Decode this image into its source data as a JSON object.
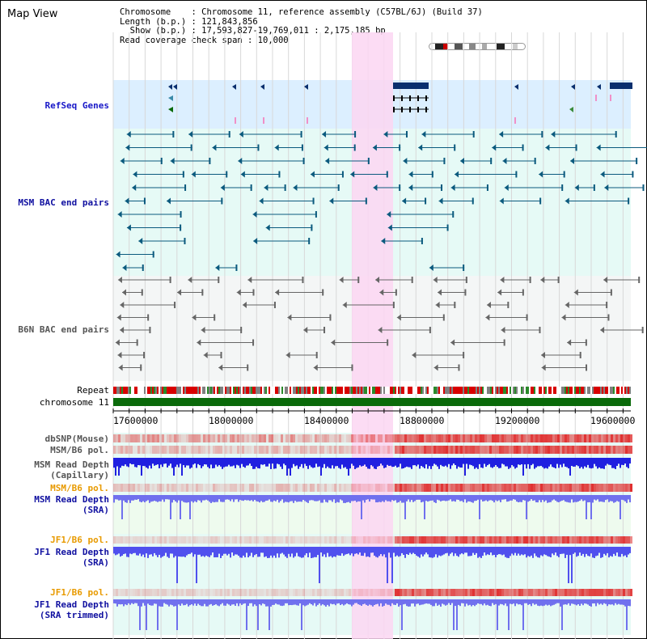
{
  "title": "Map View",
  "info": {
    "chromosome": "Chromosome    : Chromosome 11, reference assembly (C57BL/6J) (Build 37)",
    "length": "Length (b.p.) : 121,843,856",
    "show": "  Show (b.p.) : 17,593,827-19,769,011 : 2,175,185 bp",
    "coverage": "Read coverage check span : 10,000"
  },
  "tracks": {
    "refseq": "RefSeq Genes",
    "msm_bac": "MSM BAC end pairs",
    "b6n_bac": "B6N BAC end pairs",
    "repeat": "Repeat",
    "chromosome": "chromosome 11",
    "dbsnp": "dbSNP(Mouse)",
    "msm_pol1": "MSM/B6 pol.",
    "msm_depth_cap1": "MSM Read Depth",
    "msm_depth_cap2": "(Capillary)",
    "msm_pol2": "MSM/B6 pol.",
    "msm_depth_sra1": "MSM Read Depth",
    "msm_depth_sra2": "(SRA)",
    "jf1_pol1": "JF1/B6 pol.",
    "jf1_depth1": "JF1 Read Depth",
    "jf1_depth2": "(SRA)",
    "jf1_pol2": "JF1/B6 pol.",
    "jf1_trim1": "JF1 Read Depth",
    "jf1_trim2": "(SRA trimmed)"
  },
  "axis": {
    "ticks": [
      "17600000",
      "18000000",
      "18400000",
      "18800000",
      "19200000",
      "19600000"
    ]
  },
  "colors": {
    "refseq_bg": "#dcefff",
    "bac_bg": "#e6faf6",
    "highlight": "#fbd6f2",
    "gene": "#0a2f6e",
    "msm_feature": "#0b5a7e",
    "b6n_feature": "#666666",
    "chromosome": "#0a6a0a",
    "depth": "#2020e0"
  }
}
